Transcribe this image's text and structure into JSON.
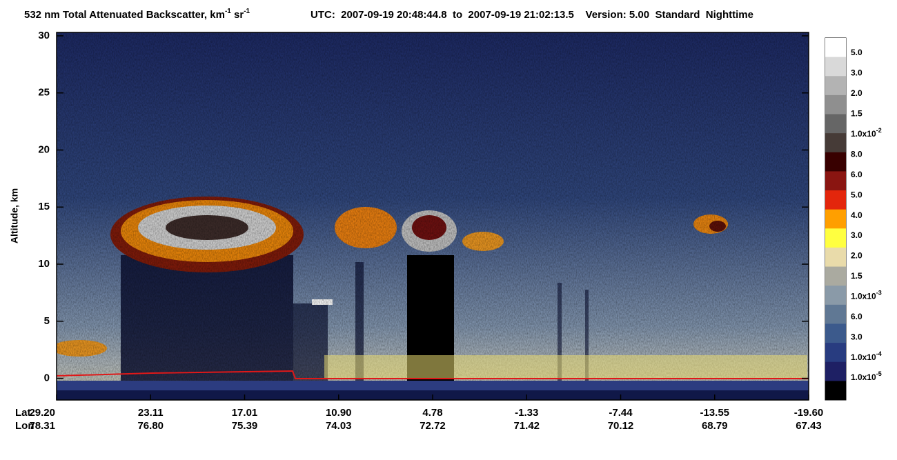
{
  "chart_data": {
    "type": "heatmap",
    "title": [
      "532 nm Total Attenuated Backscatter, km",
      "-1",
      " sr",
      "-1"
    ],
    "subtitle": "UTC:  2007-09-19 20:48:44.8  to  2007-09-19 21:02:13.5    Version: 5.00  Standard  Nighttime",
    "y_label": "Altitude, km",
    "ylim": [
      -1.9,
      30.3
    ],
    "yticks": [
      0,
      5,
      10,
      15,
      20,
      25,
      30
    ],
    "x_row_labels": [
      "Lat",
      "Lon"
    ],
    "categories": [
      "29.20",
      "23.11",
      "17.01",
      "10.90",
      "4.78",
      "-1.33",
      "-7.44",
      "-13.55",
      "-19.60"
    ],
    "lon_labels": [
      "78.31",
      "76.80",
      "75.39",
      "74.03",
      "72.72",
      "71.42",
      "70.12",
      "68.79",
      "67.43"
    ],
    "colorbar": {
      "colors": [
        "#ffffff",
        "#d9d9d9",
        "#b3b3b3",
        "#8f8f8f",
        "#666666",
        "#463b37",
        "#380000",
        "#8a1511",
        "#e3260c",
        "#ff9f00",
        "#ffff40",
        "#e9dbaa",
        "#aaaaa0",
        "#8a9aa8",
        "#607894",
        "#3c5a8c",
        "#283c80",
        "#1e2064",
        "#000000"
      ],
      "labels": [
        "5.0",
        "3.0",
        "2.0",
        "1.5",
        [
          "1.0x10",
          "-2"
        ],
        "8.0",
        "6.0",
        "5.0",
        "4.0",
        "3.0",
        "2.0",
        "1.5",
        [
          "1.0x10",
          "-3"
        ],
        "6.0",
        "3.0",
        [
          "1.0x10",
          "-4"
        ],
        [
          "1.0x10",
          "-5"
        ]
      ]
    }
  }
}
